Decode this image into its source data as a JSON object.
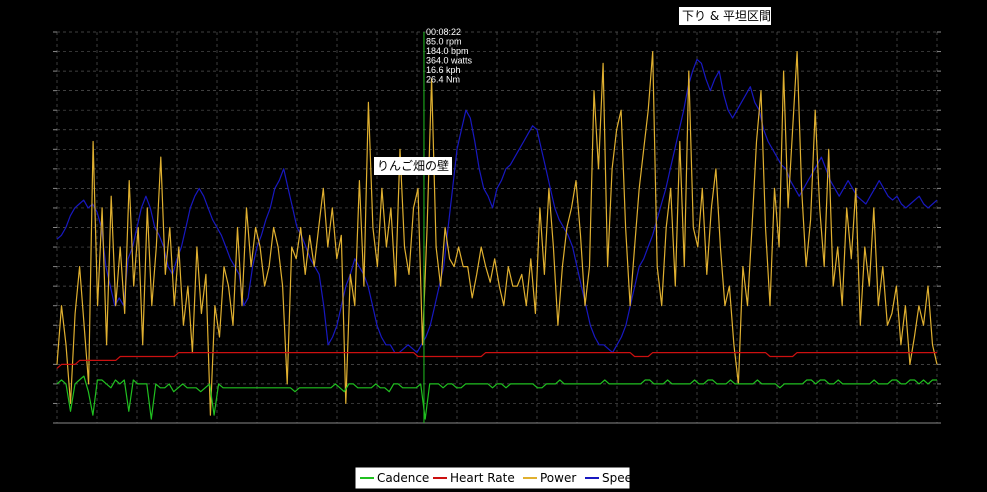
{
  "chart_data": {
    "type": "line",
    "title": "",
    "xlabel": "",
    "ylabel": "",
    "grid": true,
    "legend_position": "bottom",
    "x_range_normalized": [
      0,
      1
    ],
    "series": [
      {
        "name": "Cadence",
        "color": "#20c020",
        "values": [
          0.1,
          0.11,
          0.1,
          0.03,
          0.1,
          0.11,
          0.12,
          0.08,
          0.02,
          0.11,
          0.11,
          0.1,
          0.09,
          0.11,
          0.1,
          0.11,
          0.03,
          0.11,
          0.1,
          0.1,
          0.1,
          0.01,
          0.1,
          0.09,
          0.09,
          0.1,
          0.08,
          0.09,
          0.1,
          0.09,
          0.09,
          0.09,
          0.08,
          0.09,
          0.1,
          0.02,
          0.1,
          0.09,
          0.09,
          0.09,
          0.09,
          0.09,
          0.09,
          0.09,
          0.09,
          0.09,
          0.09,
          0.09,
          0.09,
          0.09,
          0.09,
          0.09,
          0.09,
          0.08,
          0.09,
          0.09,
          0.09,
          0.09,
          0.09,
          0.09,
          0.09,
          0.09,
          0.1,
          0.09,
          0.08,
          0.1,
          0.1,
          0.09,
          0.09,
          0.09,
          0.09,
          0.1,
          0.09,
          0.09,
          0.08,
          0.1,
          0.1,
          0.09,
          0.09,
          0.09,
          0.09,
          0.1,
          0.01,
          0.1,
          0.1,
          0.1,
          0.09,
          0.1,
          0.1,
          0.09,
          0.09,
          0.1,
          0.1,
          0.1,
          0.1,
          0.1,
          0.1,
          0.09,
          0.1,
          0.1,
          0.09,
          0.1,
          0.1,
          0.1,
          0.1,
          0.1,
          0.1,
          0.09,
          0.09,
          0.1,
          0.1,
          0.1,
          0.11,
          0.1,
          0.1,
          0.1,
          0.1,
          0.1,
          0.1,
          0.1,
          0.1,
          0.1,
          0.11,
          0.1,
          0.1,
          0.1,
          0.1,
          0.1,
          0.1,
          0.1,
          0.1,
          0.11,
          0.11,
          0.1,
          0.1,
          0.1,
          0.11,
          0.1,
          0.1,
          0.1,
          0.1,
          0.1,
          0.11,
          0.1,
          0.1,
          0.11,
          0.11,
          0.1,
          0.1,
          0.1,
          0.11,
          0.1,
          0.1,
          0.1,
          0.1,
          0.1,
          0.11,
          0.1,
          0.1,
          0.1,
          0.1,
          0.09,
          0.1,
          0.1,
          0.1,
          0.1,
          0.1,
          0.11,
          0.11,
          0.1,
          0.11,
          0.11,
          0.1,
          0.1,
          0.11,
          0.1,
          0.1,
          0.1,
          0.1,
          0.1,
          0.1,
          0.1,
          0.11,
          0.1,
          0.1,
          0.1,
          0.11,
          0.11,
          0.1,
          0.1,
          0.11,
          0.11,
          0.1,
          0.11,
          0.1,
          0.11,
          0.11
        ]
      },
      {
        "name": "Heart Rate",
        "color": "#cc1010",
        "values": [
          0.14,
          0.15,
          0.15,
          0.15,
          0.15,
          0.16,
          0.16,
          0.16,
          0.16,
          0.16,
          0.16,
          0.16,
          0.16,
          0.16,
          0.17,
          0.17,
          0.17,
          0.17,
          0.17,
          0.17,
          0.17,
          0.17,
          0.17,
          0.17,
          0.17,
          0.17,
          0.17,
          0.18,
          0.18,
          0.18,
          0.18,
          0.18,
          0.18,
          0.18,
          0.18,
          0.18,
          0.18,
          0.18,
          0.18,
          0.18,
          0.18,
          0.18,
          0.18,
          0.18,
          0.18,
          0.18,
          0.18,
          0.18,
          0.18,
          0.18,
          0.18,
          0.18,
          0.18,
          0.18,
          0.18,
          0.18,
          0.18,
          0.18,
          0.18,
          0.18,
          0.18,
          0.18,
          0.18,
          0.18,
          0.18,
          0.18,
          0.18,
          0.18,
          0.18,
          0.18,
          0.18,
          0.18,
          0.18,
          0.18,
          0.18,
          0.18,
          0.18,
          0.18,
          0.18,
          0.18,
          0.17,
          0.17,
          0.17,
          0.17,
          0.17,
          0.17,
          0.17,
          0.17,
          0.17,
          0.17,
          0.17,
          0.17,
          0.17,
          0.17,
          0.17,
          0.18,
          0.18,
          0.18,
          0.18,
          0.18,
          0.18,
          0.18,
          0.18,
          0.18,
          0.18,
          0.18,
          0.18,
          0.18,
          0.18,
          0.18,
          0.18,
          0.18,
          0.18,
          0.18,
          0.18,
          0.18,
          0.18,
          0.18,
          0.18,
          0.18,
          0.18,
          0.18,
          0.18,
          0.18,
          0.18,
          0.18,
          0.18,
          0.18,
          0.17,
          0.17,
          0.17,
          0.17,
          0.18,
          0.18,
          0.18,
          0.18,
          0.18,
          0.18,
          0.18,
          0.18,
          0.18,
          0.18,
          0.18,
          0.18,
          0.18,
          0.18,
          0.18,
          0.18,
          0.18,
          0.18,
          0.18,
          0.18,
          0.18,
          0.18,
          0.18,
          0.18,
          0.18,
          0.18,
          0.17,
          0.17,
          0.17,
          0.17,
          0.17,
          0.17,
          0.18,
          0.18,
          0.18,
          0.18,
          0.18,
          0.18,
          0.18,
          0.18,
          0.18,
          0.18,
          0.18,
          0.18,
          0.18,
          0.18,
          0.18,
          0.18,
          0.18,
          0.18,
          0.18,
          0.18,
          0.18,
          0.18,
          0.18,
          0.18,
          0.18,
          0.18,
          0.18,
          0.18,
          0.18,
          0.18,
          0.18,
          0.18
        ]
      },
      {
        "name": "Power",
        "color": "#e0b030",
        "values": [
          0.15,
          0.3,
          0.2,
          0.05,
          0.28,
          0.4,
          0.25,
          0.1,
          0.72,
          0.3,
          0.55,
          0.2,
          0.58,
          0.3,
          0.45,
          0.28,
          0.62,
          0.35,
          0.5,
          0.2,
          0.55,
          0.3,
          0.45,
          0.68,
          0.38,
          0.5,
          0.3,
          0.45,
          0.25,
          0.35,
          0.18,
          0.45,
          0.28,
          0.38,
          0.02,
          0.3,
          0.22,
          0.4,
          0.35,
          0.25,
          0.5,
          0.3,
          0.55,
          0.4,
          0.5,
          0.45,
          0.35,
          0.4,
          0.5,
          0.45,
          0.35,
          0.1,
          0.45,
          0.42,
          0.5,
          0.38,
          0.48,
          0.4,
          0.5,
          0.6,
          0.45,
          0.55,
          0.42,
          0.48,
          0.05,
          0.38,
          0.3,
          0.62,
          0.35,
          0.82,
          0.5,
          0.4,
          0.6,
          0.45,
          0.55,
          0.35,
          0.7,
          0.45,
          0.38,
          0.55,
          0.6,
          0.2,
          0.5,
          0.88,
          0.45,
          0.35,
          0.5,
          0.42,
          0.4,
          0.45,
          0.4,
          0.4,
          0.32,
          0.38,
          0.45,
          0.4,
          0.36,
          0.42,
          0.35,
          0.3,
          0.4,
          0.35,
          0.35,
          0.38,
          0.3,
          0.42,
          0.28,
          0.55,
          0.38,
          0.6,
          0.45,
          0.25,
          0.4,
          0.5,
          0.55,
          0.62,
          0.48,
          0.3,
          0.4,
          0.85,
          0.65,
          0.92,
          0.4,
          0.65,
          0.75,
          0.8,
          0.5,
          0.3,
          0.45,
          0.6,
          0.7,
          0.8,
          0.95,
          0.4,
          0.3,
          0.5,
          0.6,
          0.35,
          0.72,
          0.4,
          0.9,
          0.5,
          0.45,
          0.6,
          0.38,
          0.55,
          0.65,
          0.45,
          0.3,
          0.35,
          0.2,
          0.1,
          0.4,
          0.3,
          0.5,
          0.72,
          0.85,
          0.5,
          0.3,
          0.6,
          0.45,
          0.9,
          0.55,
          0.75,
          0.95,
          0.6,
          0.4,
          0.52,
          0.8,
          0.55,
          0.4,
          0.7,
          0.35,
          0.45,
          0.3,
          0.55,
          0.42,
          0.6,
          0.25,
          0.45,
          0.35,
          0.55,
          0.3,
          0.4,
          0.25,
          0.28,
          0.35,
          0.2,
          0.3,
          0.15,
          0.22,
          0.3,
          0.25,
          0.35,
          0.2,
          0.15
        ]
      },
      {
        "name": "Speed",
        "color": "#1818c0",
        "values": [
          0.47,
          0.48,
          0.5,
          0.53,
          0.55,
          0.56,
          0.57,
          0.55,
          0.56,
          0.54,
          0.5,
          0.4,
          0.35,
          0.3,
          0.32,
          0.3,
          0.42,
          0.45,
          0.5,
          0.55,
          0.58,
          0.55,
          0.5,
          0.48,
          0.45,
          0.4,
          0.38,
          0.42,
          0.45,
          0.5,
          0.55,
          0.58,
          0.6,
          0.58,
          0.55,
          0.52,
          0.5,
          0.48,
          0.45,
          0.42,
          0.4,
          0.38,
          0.3,
          0.32,
          0.4,
          0.45,
          0.48,
          0.52,
          0.55,
          0.6,
          0.62,
          0.65,
          0.6,
          0.55,
          0.5,
          0.48,
          0.45,
          0.42,
          0.4,
          0.38,
          0.3,
          0.2,
          0.22,
          0.25,
          0.3,
          0.35,
          0.38,
          0.42,
          0.4,
          0.38,
          0.35,
          0.3,
          0.25,
          0.22,
          0.2,
          0.2,
          0.18,
          0.18,
          0.19,
          0.2,
          0.19,
          0.18,
          0.2,
          0.22,
          0.25,
          0.3,
          0.35,
          0.4,
          0.5,
          0.6,
          0.7,
          0.75,
          0.8,
          0.78,
          0.72,
          0.65,
          0.6,
          0.58,
          0.55,
          0.6,
          0.62,
          0.65,
          0.66,
          0.68,
          0.7,
          0.72,
          0.74,
          0.76,
          0.75,
          0.7,
          0.65,
          0.6,
          0.55,
          0.52,
          0.5,
          0.48,
          0.45,
          0.4,
          0.35,
          0.3,
          0.25,
          0.22,
          0.2,
          0.2,
          0.19,
          0.18,
          0.2,
          0.22,
          0.25,
          0.3,
          0.35,
          0.4,
          0.42,
          0.45,
          0.48,
          0.52,
          0.56,
          0.6,
          0.65,
          0.7,
          0.75,
          0.8,
          0.86,
          0.9,
          0.93,
          0.92,
          0.88,
          0.85,
          0.88,
          0.9,
          0.84,
          0.8,
          0.78,
          0.8,
          0.82,
          0.84,
          0.86,
          0.82,
          0.8,
          0.75,
          0.72,
          0.7,
          0.68,
          0.66,
          0.65,
          0.62,
          0.6,
          0.58,
          0.6,
          0.62,
          0.64,
          0.66,
          0.68,
          0.65,
          0.62,
          0.6,
          0.58,
          0.6,
          0.62,
          0.6,
          0.58,
          0.57,
          0.56,
          0.58,
          0.6,
          0.62,
          0.6,
          0.58,
          0.57,
          0.58,
          0.56,
          0.55,
          0.56,
          0.57,
          0.58,
          0.56,
          0.55,
          0.56,
          0.57
        ]
      }
    ],
    "cursor": {
      "position_fraction": 0.417,
      "readout": [
        "00:08:22",
        "85.0 rpm",
        "184.0 bpm",
        "364.0 watts",
        "16.6 kph",
        "26.4 Nm"
      ]
    },
    "annotations": [
      {
        "text": "りんご畑の壁"
      },
      {
        "text": "下り & 平坦区間"
      }
    ]
  },
  "legend": {
    "items": [
      {
        "label": "Cadence",
        "color": "#20c020"
      },
      {
        "label": "Heart Rate",
        "color": "#cc1010"
      },
      {
        "label": "Power",
        "color": "#e0b030"
      },
      {
        "label": "Speed",
        "color": "#1818c0"
      }
    ]
  }
}
